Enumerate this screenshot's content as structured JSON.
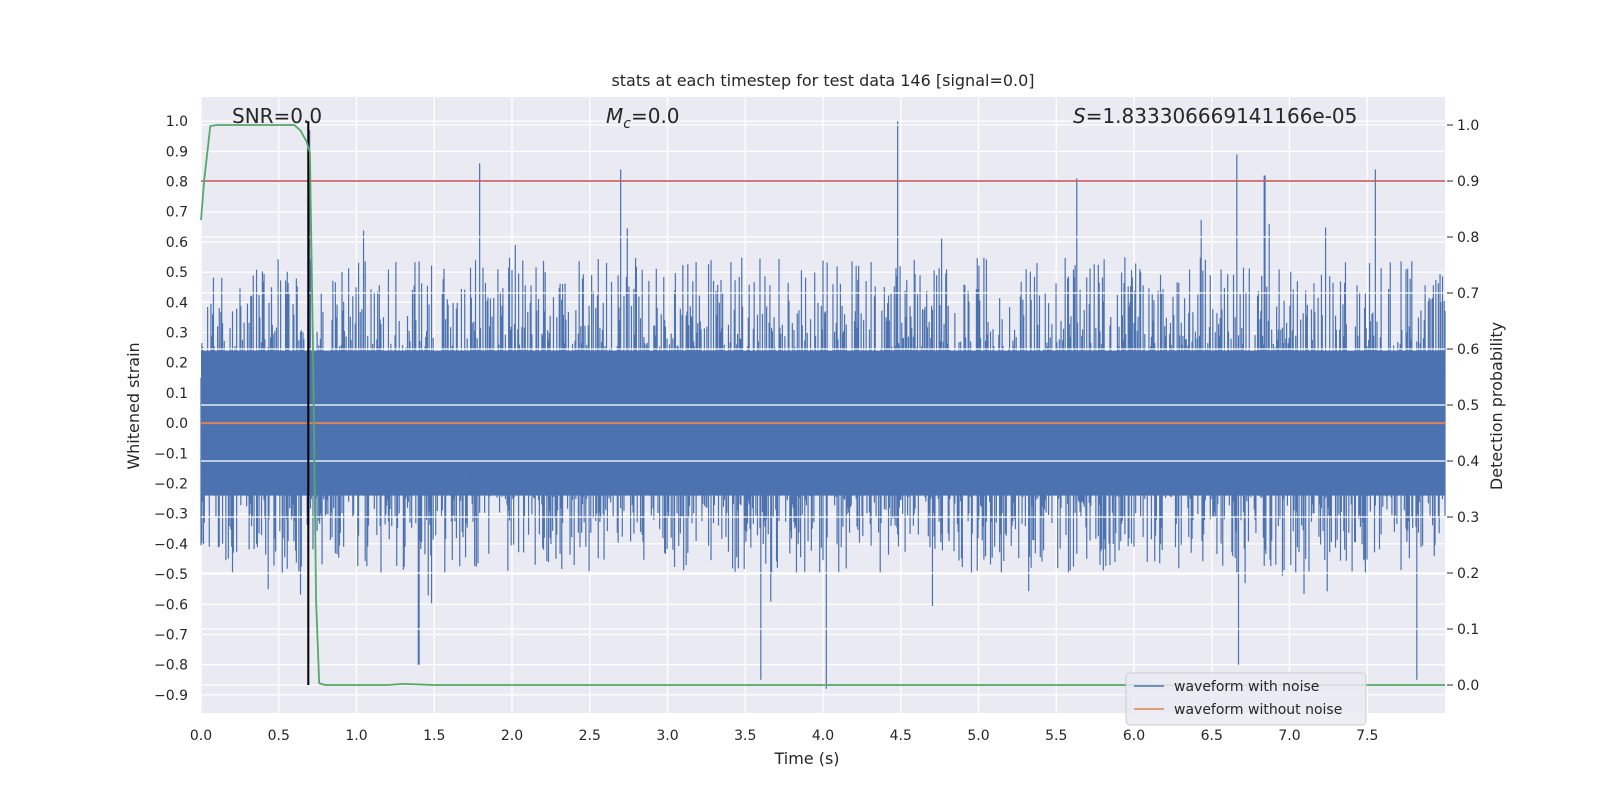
{
  "chart_data": {
    "type": "line",
    "title": "stats at each timestep for test data 146 [signal=0.0]",
    "xlabel": "Time (s)",
    "ylabel": "Whitened strain",
    "y2label": "Detection probability",
    "xlim": [
      0.0,
      8.0
    ],
    "ylim": [
      -0.96,
      1.08
    ],
    "y2lim": [
      -0.05,
      1.05
    ],
    "x_ticks": [
      0.0,
      0.5,
      1.0,
      1.5,
      2.0,
      2.5,
      3.0,
      3.5,
      4.0,
      4.5,
      5.0,
      5.5,
      6.0,
      6.5,
      7.0,
      7.5
    ],
    "x_tick_labels": [
      "0.0",
      "0.5",
      "1.0",
      "1.5",
      "2.0",
      "2.5",
      "3.0",
      "3.5",
      "4.0",
      "4.5",
      "5.0",
      "5.5",
      "6.0",
      "6.5",
      "7.0",
      "7.5"
    ],
    "y_ticks": [
      1.0,
      0.9,
      0.8,
      0.7,
      0.6,
      0.5,
      0.4,
      0.3,
      0.2,
      0.1,
      0.0,
      -0.1,
      -0.2,
      -0.3,
      -0.4,
      -0.5,
      -0.6,
      -0.7,
      -0.8,
      -0.9
    ],
    "y_tick_labels": [
      "1.0",
      "0.9",
      "0.8",
      "0.7",
      "0.6",
      "0.5",
      "0.4",
      "0.3",
      "0.2",
      "0.1",
      "0.0",
      "-0.1",
      "-0.2",
      "-0.3",
      "-0.4",
      "-0.5",
      "-0.6",
      "-0.7",
      "-0.8",
      "-0.9"
    ],
    "y2_ticks": [
      1.0,
      0.9,
      0.8,
      0.7,
      0.6,
      0.5,
      0.4,
      0.3,
      0.2,
      0.1,
      0.0
    ],
    "y2_tick_labels": [
      "1.0",
      "0.9",
      "0.8",
      "0.7",
      "0.6",
      "0.5",
      "0.4",
      "0.3",
      "0.2",
      "0.1",
      "0.0"
    ],
    "annotations": {
      "snr": "SNR=0.0",
      "mc_symbol": "M",
      "mc_subscript": "c",
      "mc_value": "=0.0",
      "s_symbol": "S",
      "s_value": "=1.833306669141166e-05"
    },
    "threshold_y2": 0.9,
    "event_time": 0.69,
    "series": [
      {
        "name": "waveform with noise",
        "color": "#4c72b0",
        "axis": "left",
        "envelope_typical": [
          -0.5,
          0.55
        ],
        "peaks": [
          {
            "x": 0.7,
            "y": 0.97
          },
          {
            "x": 1.79,
            "y": 0.86
          },
          {
            "x": 2.7,
            "y": 0.84
          },
          {
            "x": 4.48,
            "y": 1.0
          },
          {
            "x": 5.63,
            "y": 0.81
          },
          {
            "x": 6.66,
            "y": 0.89
          },
          {
            "x": 6.84,
            "y": 0.82
          },
          {
            "x": 7.55,
            "y": 0.84
          }
        ],
        "troughs": [
          {
            "x": 1.4,
            "y": -0.8
          },
          {
            "x": 3.6,
            "y": -0.85
          },
          {
            "x": 4.02,
            "y": -0.88
          },
          {
            "x": 6.67,
            "y": -0.8
          },
          {
            "x": 7.82,
            "y": -0.85
          }
        ]
      },
      {
        "name": "waveform without noise",
        "color": "#dd8452",
        "axis": "left",
        "x": [
          0.0,
          8.0
        ],
        "y": [
          0.0,
          0.0
        ]
      },
      {
        "name": "detection probability",
        "color": "#55a868",
        "axis": "right",
        "x": [
          0.0,
          0.02,
          0.06,
          0.1,
          0.2,
          0.3,
          0.4,
          0.5,
          0.6,
          0.64,
          0.68,
          0.69,
          0.7,
          0.72,
          0.74,
          0.76,
          0.8,
          1.0,
          1.2,
          1.3,
          1.5,
          2.0,
          3.0,
          4.0,
          5.0,
          6.0,
          7.0,
          8.0
        ],
        "y": [
          0.83,
          0.9,
          0.998,
          1.0,
          1.0,
          1.0,
          1.0,
          1.0,
          1.0,
          0.99,
          0.97,
          0.96,
          0.95,
          0.6,
          0.15,
          0.003,
          0.0,
          0.0,
          0.0,
          0.002,
          0.0,
          0.0,
          0.0,
          0.0,
          0.0,
          0.0,
          0.0,
          0.0
        ]
      }
    ],
    "threshold_color": "#c44e52",
    "event_line_color": "#000000",
    "legend": {
      "placement": "bottom-right",
      "entries": [
        {
          "label": "waveform with noise",
          "color": "#4c72b0"
        },
        {
          "label": "waveform without noise",
          "color": "#dd8452"
        }
      ]
    },
    "background_color": "#eaeaf2",
    "grid": true
  }
}
